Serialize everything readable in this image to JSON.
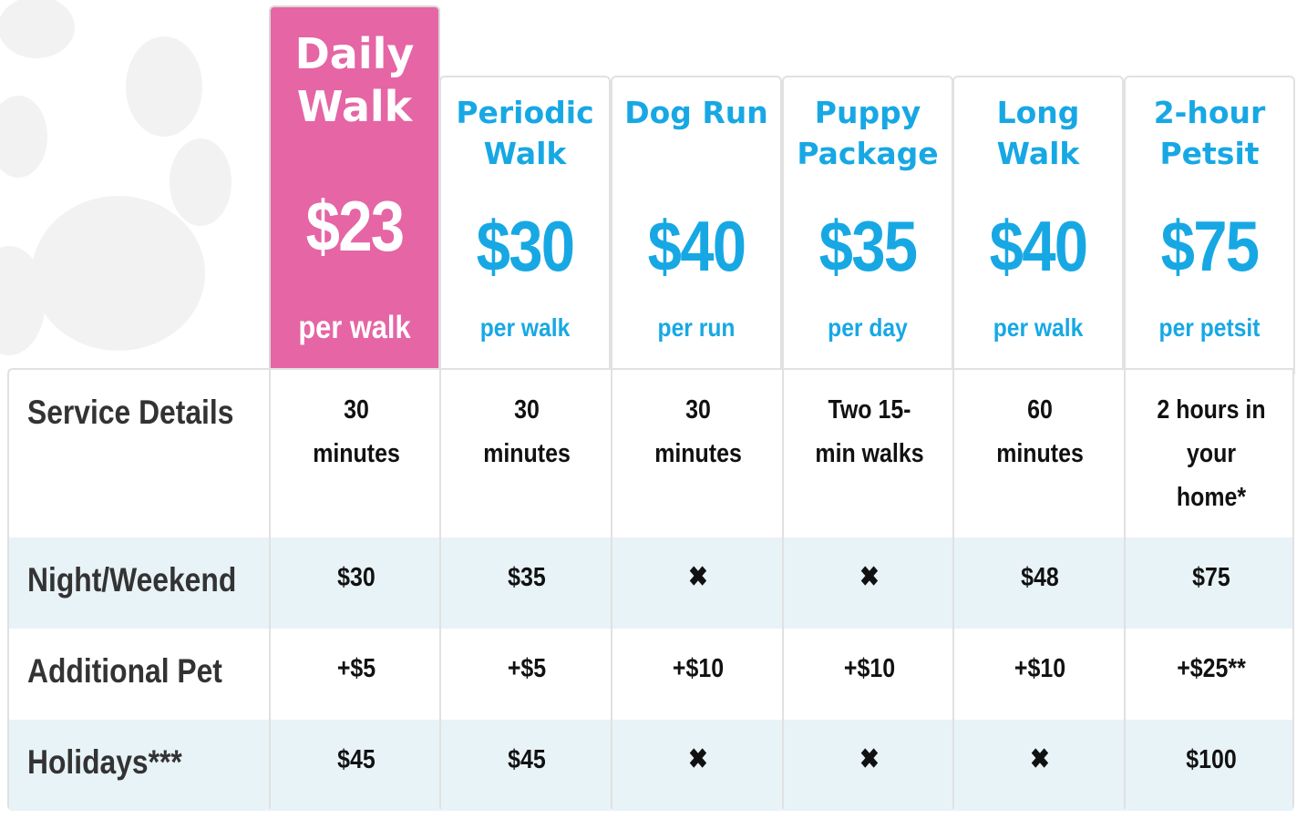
{
  "plans": [
    {
      "name": "Daily Walk",
      "price": "$23",
      "unit": "per walk",
      "featured": true
    },
    {
      "name": "Periodic Walk",
      "price": "$30",
      "unit": "per walk"
    },
    {
      "name": "Dog Run",
      "price": "$40",
      "unit": "per run"
    },
    {
      "name": "Puppy Package",
      "price": "$35",
      "unit": "per day"
    },
    {
      "name": "Long Walk",
      "price": "$40",
      "unit": "per walk"
    },
    {
      "name": "2-hour Petsit",
      "price": "$75",
      "unit": "per petsit"
    }
  ],
  "rows": [
    {
      "label": "Service Details",
      "values": [
        "30 minutes",
        "30 minutes",
        "30 minutes",
        "Two 15-min walks",
        "60 minutes",
        "2 hours in your home*"
      ]
    },
    {
      "label": "Night/Weekend",
      "values": [
        "$30",
        "$35",
        "✖",
        "✖",
        "$48",
        "$75"
      ]
    },
    {
      "label": "Additional Pet",
      "values": [
        "+$5",
        "+$5",
        "+$10",
        "+$10",
        "+$10",
        "+$25**"
      ]
    },
    {
      "label": "Holidays***",
      "values": [
        "$45",
        "$45",
        "✖",
        "✖",
        "✖",
        "$100"
      ]
    }
  ],
  "colors": {
    "featured": "#e565a5",
    "accent": "#17a8e4",
    "shaded_row": "#e8f3f8"
  }
}
